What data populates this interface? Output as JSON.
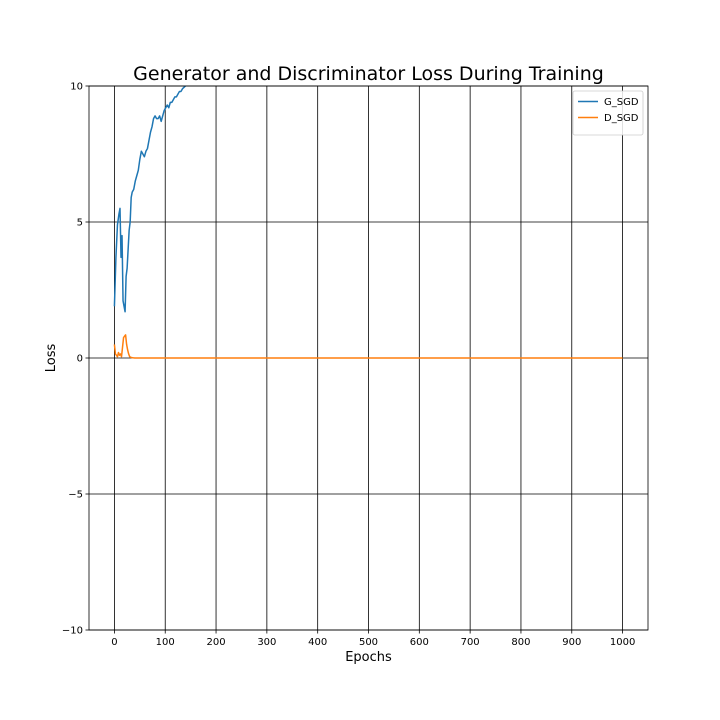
{
  "chart_data": {
    "type": "line",
    "title": "Generator and Discriminator Loss During Training",
    "xlabel": "Epochs",
    "ylabel": "Loss",
    "xlim": [
      -50,
      1050
    ],
    "ylim": [
      -10,
      10
    ],
    "xticks": [
      0,
      100,
      200,
      300,
      400,
      500,
      600,
      700,
      800,
      900,
      1000
    ],
    "yticks": [
      -10,
      -5,
      0,
      5,
      10
    ],
    "ytick_labels": [
      "−10",
      "−5",
      "0",
      "5",
      "10"
    ],
    "grid": true,
    "legend_position": "top-right",
    "series": [
      {
        "name": "G_SGD",
        "color": "#1f77b4",
        "x": [
          0,
          3,
          6,
          9,
          11,
          13,
          15,
          17,
          19,
          21,
          23,
          25,
          27,
          29,
          31,
          33,
          35,
          38,
          41,
          44,
          47,
          50,
          53,
          56,
          59,
          62,
          65,
          68,
          71,
          74,
          77,
          80,
          83,
          86,
          89,
          92,
          95,
          98,
          101,
          104,
          107,
          110,
          113,
          116,
          119,
          122,
          125,
          128,
          131,
          134,
          137,
          140
        ],
        "y": [
          1.9,
          3.7,
          4.9,
          5.3,
          5.5,
          3.7,
          4.5,
          2.1,
          1.9,
          1.7,
          3.0,
          3.3,
          4.0,
          4.7,
          5.0,
          5.9,
          6.1,
          6.2,
          6.5,
          6.7,
          6.9,
          7.3,
          7.6,
          7.5,
          7.4,
          7.6,
          7.7,
          8.0,
          8.3,
          8.5,
          8.8,
          8.9,
          8.8,
          8.8,
          8.9,
          8.7,
          8.9,
          9.1,
          9.2,
          9.3,
          9.2,
          9.4,
          9.4,
          9.5,
          9.6,
          9.6,
          9.7,
          9.8,
          9.8,
          9.9,
          9.95,
          10.0
        ]
      },
      {
        "name": "D_SGD",
        "color": "#ff7f0e",
        "x": [
          0,
          2,
          4,
          6,
          8,
          10,
          12,
          14,
          16,
          18,
          20,
          22,
          24,
          26,
          28,
          30,
          33,
          36,
          40,
          50,
          100,
          200,
          300,
          400,
          500,
          600,
          700,
          800,
          900,
          1000
        ],
        "y": [
          0.5,
          0.15,
          0.1,
          0.05,
          0.2,
          0.1,
          0.15,
          0.05,
          0.4,
          0.75,
          0.8,
          0.85,
          0.5,
          0.3,
          0.15,
          0.05,
          0.02,
          0.01,
          0.0,
          0.0,
          0.0,
          0.0,
          0.0,
          0.0,
          0.0,
          0.0,
          0.0,
          0.0,
          0.0,
          0.0
        ]
      }
    ]
  }
}
